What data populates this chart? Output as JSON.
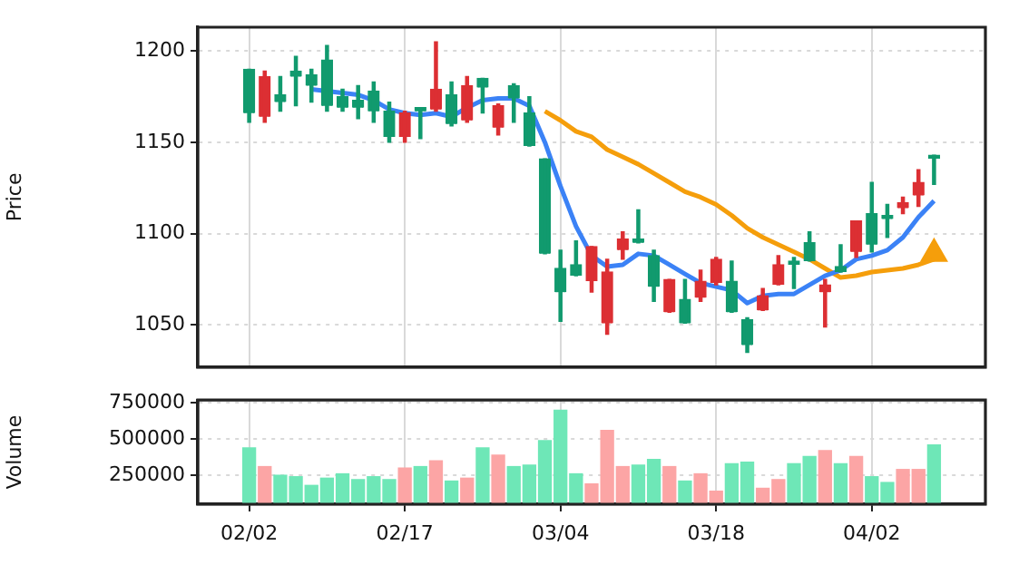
{
  "chart_data": [
    {
      "type": "candlestick",
      "ylabel": "Price",
      "categories": [
        null,
        null,
        null,
        null,
        null,
        null,
        null,
        null,
        null,
        null,
        null,
        null,
        null,
        null,
        null,
        null,
        null,
        null,
        null,
        null,
        null,
        null,
        null,
        null,
        null,
        null,
        null,
        null,
        null,
        null,
        null,
        null,
        null,
        null,
        null,
        null,
        null,
        null,
        null,
        null,
        null,
        null,
        null,
        null,
        null
      ],
      "ohlc": [
        [
          1166,
          1190,
          1161,
          1190
        ],
        [
          1186,
          1189,
          1161,
          1164
        ],
        [
          1172,
          1186,
          1167,
          1176
        ],
        [
          1186,
          1197,
          1170,
          1189
        ],
        [
          1181,
          1190,
          1172,
          1187
        ],
        [
          1170,
          1203,
          1167,
          1195
        ],
        [
          1169,
          1179,
          1167,
          1175
        ],
        [
          1169,
          1181,
          1163,
          1173
        ],
        [
          1167,
          1183,
          1161,
          1178
        ],
        [
          1153,
          1172,
          1150,
          1167
        ],
        [
          1166,
          1167,
          1150,
          1153
        ],
        [
          1167,
          1169,
          1152,
          1169
        ],
        [
          1179,
          1205,
          1167,
          1168
        ],
        [
          1160,
          1183,
          1159,
          1176
        ],
        [
          1181,
          1186,
          1161,
          1162
        ],
        [
          1180,
          1185,
          1166,
          1185
        ],
        [
          1170,
          1171,
          1154,
          1158
        ],
        [
          1174,
          1182,
          1161,
          1181
        ],
        [
          1148,
          1175,
          1148,
          1166
        ],
        [
          1089,
          1141,
          1089,
          1141
        ],
        [
          1068,
          1091,
          1052,
          1081
        ],
        [
          1077,
          1096,
          1077,
          1083
        ],
        [
          1093,
          1093,
          1068,
          1074
        ],
        [
          1079,
          1086,
          1045,
          1051
        ],
        [
          1097,
          1101,
          1086,
          1091
        ],
        [
          1095,
          1113,
          1095,
          1097
        ],
        [
          1071,
          1091,
          1063,
          1088
        ],
        [
          1075,
          1075,
          1057,
          1057
        ],
        [
          1051,
          1075,
          1051,
          1064
        ],
        [
          1074,
          1080,
          1063,
          1065
        ],
        [
          1086,
          1087,
          1072,
          1073
        ],
        [
          1057,
          1085,
          1057,
          1074
        ],
        [
          1039,
          1054,
          1035,
          1053
        ],
        [
          1066,
          1070,
          1058,
          1058
        ],
        [
          1083,
          1088,
          1072,
          1072
        ],
        [
          1083,
          1087,
          1070,
          1085
        ],
        [
          1085,
          1101,
          1085,
          1095
        ],
        [
          1072,
          1075,
          1049,
          1068
        ],
        [
          1079,
          1094,
          1079,
          1082
        ],
        [
          1107,
          1107,
          1087,
          1090
        ],
        [
          1094,
          1128,
          1090,
          1111
        ],
        [
          1108,
          1116,
          1098,
          1110
        ],
        [
          1117,
          1120,
          1111,
          1114
        ],
        [
          1128,
          1135,
          1115,
          1121
        ],
        [
          1141,
          1143,
          1127,
          1143
        ]
      ],
      "colors": [
        "#119a6e",
        "#dc2f33",
        "#119a6e",
        "#119a6e",
        "#119a6e",
        "#119a6e",
        "#119a6e",
        "#119a6e",
        "#119a6e",
        "#119a6e",
        "#dc2f33",
        "#119a6e",
        "#dc2f33",
        "#119a6e",
        "#dc2f33",
        "#119a6e",
        "#dc2f33",
        "#119a6e",
        "#119a6e",
        "#119a6e",
        "#119a6e",
        "#119a6e",
        "#dc2f33",
        "#dc2f33",
        "#dc2f33",
        "#119a6e",
        "#119a6e",
        "#dc2f33",
        "#119a6e",
        "#dc2f33",
        "#dc2f33",
        "#119a6e",
        "#119a6e",
        "#dc2f33",
        "#dc2f33",
        "#119a6e",
        "#119a6e",
        "#dc2f33",
        "#119a6e",
        "#dc2f33",
        "#119a6e",
        "#119a6e",
        "#dc2f33",
        "#dc2f33",
        "#119a6e"
      ],
      "series": [
        {
          "type": "line",
          "color": "#3b82f6",
          "values": [
            null,
            null,
            null,
            null,
            1179,
            1178,
            1177,
            1176,
            1173,
            1168,
            1166,
            1165,
            1166,
            1164,
            1169,
            1173,
            1174,
            1174,
            1170,
            1150,
            1126,
            1104,
            1088,
            1082,
            1083,
            1089,
            1088,
            1083,
            1078,
            1073,
            1071,
            1069,
            1062,
            1066,
            1067,
            1067,
            1072,
            1077,
            1080,
            1086,
            1088,
            1091,
            1098,
            1109,
            1118
          ]
        },
        {
          "type": "line",
          "color": "#f59e0b",
          "values": [
            null,
            null,
            null,
            null,
            null,
            null,
            null,
            null,
            null,
            null,
            null,
            null,
            null,
            null,
            null,
            null,
            null,
            null,
            null,
            1167,
            1162,
            1156,
            1153,
            1146,
            1142,
            1138,
            1133,
            1128,
            1123,
            1120,
            1116,
            1110,
            1103,
            1098,
            1094,
            1090,
            1086,
            1081,
            1076,
            1077,
            1079,
            1080,
            1081,
            1083,
            1086
          ]
        },
        {
          "type": "scatter",
          "color": "#f59e0b",
          "marker": "triangle",
          "values": [
            null,
            null,
            null,
            null,
            null,
            null,
            null,
            null,
            null,
            null,
            null,
            null,
            null,
            null,
            null,
            null,
            null,
            null,
            null,
            null,
            null,
            null,
            null,
            null,
            null,
            null,
            null,
            null,
            null,
            null,
            null,
            null,
            null,
            null,
            null,
            null,
            null,
            null,
            null,
            null,
            null,
            null,
            null,
            null,
            1089
          ]
        }
      ],
      "ylim": [
        1027,
        1213
      ],
      "yticks": [
        1050,
        1100,
        1150,
        1200
      ],
      "grid": true,
      "tick_labels": "y",
      "legend": false
    },
    {
      "type": "bar",
      "ylabel": "Volume",
      "categories": [
        "02/02",
        null,
        null,
        null,
        null,
        null,
        null,
        null,
        null,
        null,
        "02/17",
        null,
        null,
        null,
        null,
        null,
        null,
        null,
        null,
        null,
        "03/04",
        null,
        null,
        null,
        null,
        null,
        null,
        null,
        null,
        null,
        "03/18",
        null,
        null,
        null,
        null,
        null,
        null,
        null,
        null,
        null,
        "04/02",
        null,
        null,
        null,
        null
      ],
      "values": [
        440000,
        310000,
        250000,
        240000,
        180000,
        230000,
        260000,
        220000,
        240000,
        220000,
        300000,
        310000,
        350000,
        210000,
        230000,
        440000,
        390000,
        310000,
        320000,
        490000,
        700000,
        260000,
        190000,
        560000,
        310000,
        320000,
        360000,
        310000,
        210000,
        260000,
        140000,
        330000,
        340000,
        160000,
        220000,
        330000,
        380000,
        420000,
        330000,
        380000,
        240000,
        200000,
        290000,
        290000,
        460000
      ],
      "colors": [
        "#6ee7b7",
        "#fca5a5",
        "#6ee7b7",
        "#6ee7b7",
        "#6ee7b7",
        "#6ee7b7",
        "#6ee7b7",
        "#6ee7b7",
        "#6ee7b7",
        "#6ee7b7",
        "#fca5a5",
        "#6ee7b7",
        "#fca5a5",
        "#6ee7b7",
        "#fca5a5",
        "#6ee7b7",
        "#fca5a5",
        "#6ee7b7",
        "#6ee7b7",
        "#6ee7b7",
        "#6ee7b7",
        "#6ee7b7",
        "#fca5a5",
        "#fca5a5",
        "#fca5a5",
        "#6ee7b7",
        "#6ee7b7",
        "#fca5a5",
        "#6ee7b7",
        "#fca5a5",
        "#fca5a5",
        "#6ee7b7",
        "#6ee7b7",
        "#fca5a5",
        "#fca5a5",
        "#6ee7b7",
        "#6ee7b7",
        "#fca5a5",
        "#6ee7b7",
        "#fca5a5",
        "#6ee7b7",
        "#6ee7b7",
        "#fca5a5",
        "#fca5a5",
        "#6ee7b7"
      ],
      "ylim": [
        50000,
        770000
      ],
      "yticks": [
        250000,
        500000,
        750000
      ],
      "grid": true,
      "legend": false
    }
  ]
}
